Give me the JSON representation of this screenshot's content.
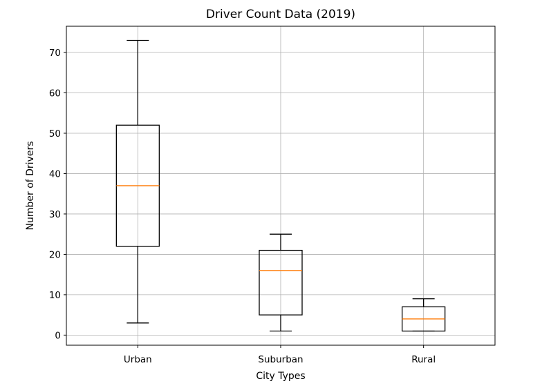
{
  "chart_data": {
    "type": "box",
    "title": "Driver Count Data (2019)",
    "xlabel": "City Types",
    "ylabel": "Number of Drivers",
    "ylim": [
      -2.5,
      76.5
    ],
    "yticks": [
      0,
      10,
      20,
      30,
      40,
      50,
      60,
      70
    ],
    "grid": true,
    "categories": [
      "Urban",
      "Suburban",
      "Rural"
    ],
    "boxes": [
      {
        "category": "Urban",
        "whisker_low": 3,
        "q1": 22,
        "median": 37,
        "q3": 52,
        "whisker_high": 73
      },
      {
        "category": "Suburban",
        "whisker_low": 1,
        "q1": 5,
        "median": 16,
        "q3": 21,
        "whisker_high": 25
      },
      {
        "category": "Rural",
        "whisker_low": 1,
        "q1": 1,
        "median": 4,
        "q3": 7,
        "whisker_high": 9
      }
    ],
    "colors": {
      "box": "#000000",
      "median": "#ff7f0e",
      "grid": "#b0b0b0",
      "frame": "#000000"
    }
  }
}
